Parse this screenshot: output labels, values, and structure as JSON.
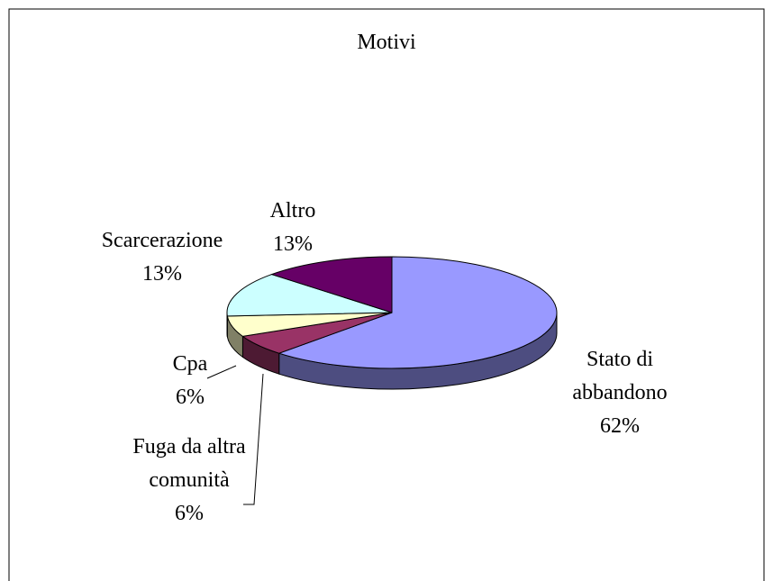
{
  "chart_data": {
    "type": "pie",
    "title": "Motivi",
    "categories": [
      "Stato di abbandono",
      "Fuga da altra comunità",
      "Cpa",
      "Scarcerazione",
      "Altro"
    ],
    "values": [
      62,
      6,
      6,
      13,
      13
    ],
    "value_labels": [
      "62%",
      "6%",
      "6%",
      "13%",
      "13%"
    ],
    "colors": [
      "#9999ff",
      "#993366",
      "#ffffcc",
      "#ccffff",
      "#660066"
    ]
  }
}
